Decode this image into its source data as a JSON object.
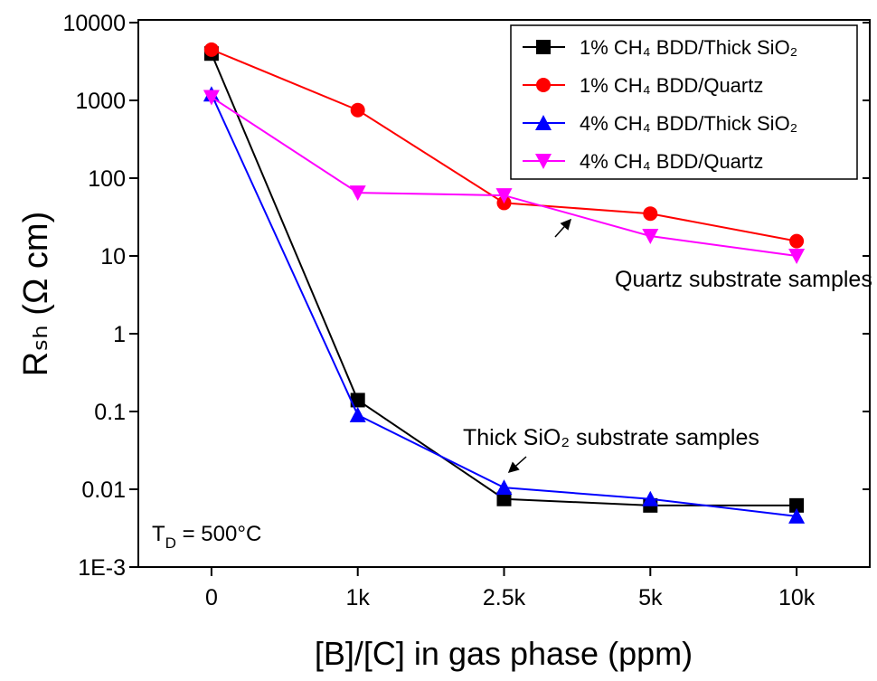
{
  "chart_data": {
    "type": "line",
    "x_label": "[B]/[C] in gas phase (ppm)",
    "y_label": "Rₛₕ (Ω cm)",
    "categories": [
      "0",
      "1k",
      "2.5k",
      "5k",
      "10k"
    ],
    "log_y": true,
    "ylim": [
      0.001,
      10000
    ],
    "yticks": [
      10000,
      1000,
      100,
      10,
      1,
      0.1,
      0.01,
      {
        "value": 0.001,
        "label": "1E-3"
      }
    ],
    "legend": "upper right",
    "series": [
      {
        "name": "1% CH₄ BDD/Thick SiO₂",
        "color": "#000000",
        "marker": "square",
        "values": [
          4000,
          0.14,
          0.0075,
          0.0062,
          0.0062
        ]
      },
      {
        "name": "1% CH₄ BDD/Quartz",
        "color": "#ff0000",
        "marker": "circle",
        "values": [
          4500,
          750,
          48,
          35,
          15.5
        ]
      },
      {
        "name": "4% CH₄ BDD/Thick SiO₂",
        "color": "#0000ff",
        "marker": "triangle-up",
        "values": [
          1200,
          0.09,
          0.0105,
          0.0075,
          0.0045
        ]
      },
      {
        "name": "4% CH₄ BDD/Quartz",
        "color": "#ff00ff",
        "marker": "triangle-down",
        "values": [
          1100,
          65,
          60,
          18,
          10
        ]
      }
    ],
    "annotations": [
      "Quartz substrate samples",
      "Thick SiO₂ substrate samples"
    ],
    "temperature_label": [
      "T",
      "D",
      " = 500°C"
    ]
  }
}
